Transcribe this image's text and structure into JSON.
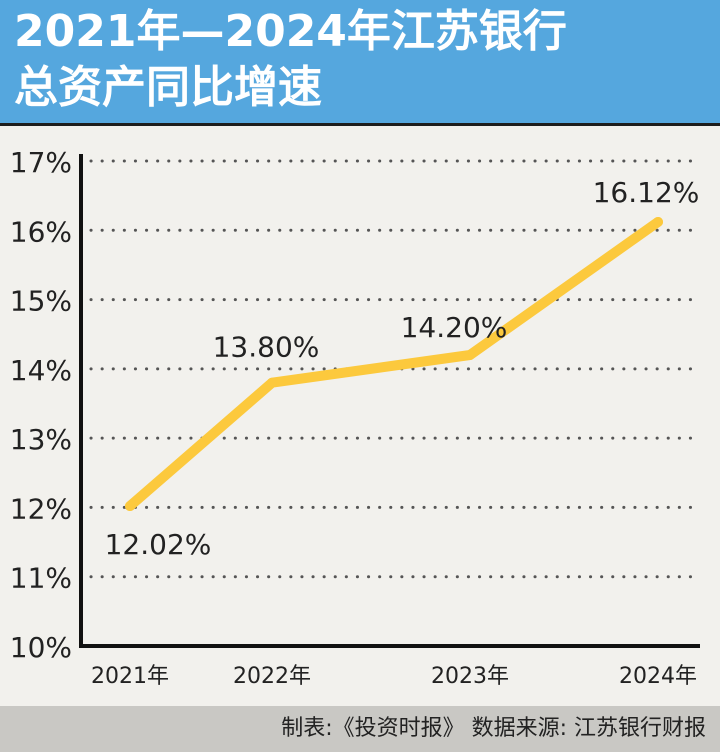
{
  "header": {
    "title_line1": "2021年—2024年江苏银行",
    "title_line2": "总资产同比增速",
    "background_color": "#55a7de"
  },
  "footer": {
    "source_text": "制表:《投资时报》 数据来源: 江苏银行财报"
  },
  "chart_data": {
    "type": "line",
    "title": "2021年—2024年江苏银行总资产同比增速",
    "categories": [
      "2021年",
      "2022年",
      "2023年",
      "2024年"
    ],
    "series": [
      {
        "values": [
          12.02,
          13.8,
          14.2,
          16.12
        ],
        "labels": [
          "12.02%",
          "13.80%",
          "14.20%",
          "16.12%"
        ],
        "color": "#fcc93d"
      }
    ],
    "yticks": [
      "10%",
      "11%",
      "12%",
      "13%",
      "14%",
      "15%",
      "16%",
      "17%"
    ],
    "ylim": [
      10,
      17
    ],
    "grid": true,
    "grid_style": "dotted",
    "legend": "none"
  }
}
